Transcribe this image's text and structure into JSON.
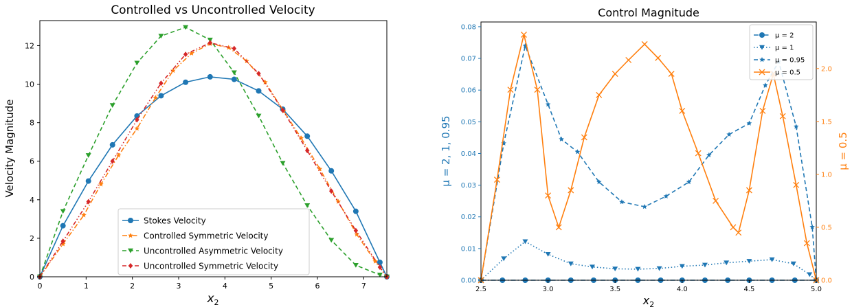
{
  "chart_data": [
    {
      "type": "line",
      "title": "Controlled vs Uncontrolled Velocity",
      "xlabel": "x",
      "xlabel_sub": "2",
      "ylabel": "Velocity Magnitude",
      "xlim": [
        0,
        7.5
      ],
      "ylim": [
        0,
        13.3
      ],
      "xticks": [
        "0",
        "1",
        "2",
        "3",
        "4",
        "5",
        "6",
        "7"
      ],
      "yticks": [
        "0",
        "2",
        "4",
        "6",
        "8",
        "10",
        "12"
      ],
      "legend_position": "lower-center",
      "grid": false,
      "series": [
        {
          "name": "Stokes Velocity",
          "color": "#1f77b4",
          "marker": "circle",
          "dash": "solid",
          "x": [
            0,
            0.5,
            1.05,
            1.57,
            2.1,
            2.62,
            3.15,
            3.68,
            4.2,
            4.73,
            5.25,
            5.78,
            6.3,
            6.83,
            7.35,
            7.5
          ],
          "y": [
            0,
            2.65,
            4.97,
            6.85,
            8.35,
            9.4,
            10.1,
            10.38,
            10.25,
            9.65,
            8.7,
            7.3,
            5.5,
            3.4,
            0.75,
            0
          ]
        },
        {
          "name": "Controlled Symmetric Velocity",
          "color": "#ff7f0e",
          "marker": "star",
          "dash": "dashdot",
          "x": [
            0,
            0.5,
            0.95,
            1.32,
            1.7,
            2.1,
            2.5,
            2.88,
            3.28,
            3.68,
            4.08,
            4.47,
            4.87,
            5.27,
            5.65,
            6.05,
            6.45,
            6.85,
            7.25,
            7.5
          ],
          "y": [
            0,
            1.7,
            3.2,
            4.8,
            6.3,
            7.7,
            9.3,
            10.7,
            11.6,
            12.1,
            11.9,
            11.2,
            10.1,
            8.6,
            7.2,
            5.6,
            3.9,
            2.2,
            0.8,
            0
          ]
        },
        {
          "name": "Uncontrolled Asymmetric Velocity",
          "color": "#2ca02c",
          "marker": "triangle-down",
          "dash": "dashed",
          "x": [
            0,
            0.5,
            1.05,
            1.57,
            2.1,
            2.62,
            3.15,
            3.68,
            4.2,
            4.73,
            5.25,
            5.78,
            6.3,
            6.83,
            7.35,
            7.5
          ],
          "y": [
            0,
            3.4,
            6.3,
            8.9,
            11.1,
            12.5,
            12.95,
            12.3,
            10.6,
            8.35,
            5.9,
            3.7,
            1.9,
            0.6,
            0.1,
            0
          ]
        },
        {
          "name": "Uncontrolled Symmetric Velocity",
          "color": "#d62728",
          "marker": "diamond",
          "dash": "dashdotdot",
          "x": [
            0,
            0.5,
            1.05,
            1.57,
            2.1,
            2.62,
            3.15,
            3.68,
            4.2,
            4.73,
            5.25,
            5.78,
            6.3,
            6.83,
            7.35,
            7.5
          ],
          "y": [
            0,
            1.85,
            3.9,
            6.0,
            8.15,
            10.05,
            11.55,
            12.15,
            11.85,
            10.55,
            8.65,
            6.55,
            4.45,
            2.4,
            0.5,
            0
          ]
        }
      ]
    },
    {
      "type": "line",
      "title": "Control Magnitude",
      "xlabel": "x",
      "xlabel_sub": "2",
      "ylabel_left": "μ = 2, 1, 0.95",
      "ylabel_right": "μ = 0.5",
      "left_axis_color": "#1f77b4",
      "right_axis_color": "#ff7f0e",
      "xlim": [
        2.5,
        5.0
      ],
      "ylim_left": [
        0,
        0.0815
      ],
      "ylim_right": [
        0,
        2.44
      ],
      "xticks": [
        "2.5",
        "3.0",
        "3.5",
        "4.0",
        "4.5",
        "5.0"
      ],
      "yticks_left": [
        "0.00",
        "0.01",
        "0.02",
        "0.03",
        "0.04",
        "0.05",
        "0.06",
        "0.07",
        "0.08"
      ],
      "yticks_right": [
        "0.0",
        "0.5",
        "1.0",
        "1.5",
        "2.0"
      ],
      "legend_position": "top-right",
      "grid": false,
      "series": [
        {
          "name": "μ = 2",
          "axis": "left",
          "color": "#1f77b4",
          "marker": "circle",
          "dash": "dashdot",
          "x": [
            2.5,
            2.66,
            2.83,
            3.0,
            3.17,
            3.34,
            3.5,
            3.67,
            3.84,
            4.0,
            4.17,
            4.34,
            4.5,
            4.67,
            4.84,
            5.0
          ],
          "y": [
            0,
            0,
            0,
            0,
            0,
            0,
            0,
            0,
            0,
            0,
            0,
            0,
            0,
            0,
            0,
            0
          ]
        },
        {
          "name": "μ = 1",
          "axis": "left",
          "color": "#1f77b4",
          "marker": "triangle-down",
          "dash": "dotted",
          "x": [
            2.5,
            2.67,
            2.83,
            3.0,
            3.17,
            3.33,
            3.5,
            3.67,
            3.83,
            4.0,
            4.17,
            4.33,
            4.5,
            4.67,
            4.83,
            4.95,
            5.0
          ],
          "y": [
            0,
            0.0068,
            0.0122,
            0.0082,
            0.0052,
            0.0042,
            0.0036,
            0.0035,
            0.0037,
            0.0044,
            0.0048,
            0.0055,
            0.006,
            0.0065,
            0.0052,
            0.0018,
            0
          ]
        },
        {
          "name": "μ = 0.95",
          "axis": "left",
          "color": "#1f77b4",
          "marker": "star",
          "dash": "dashed",
          "x": [
            2.5,
            2.67,
            2.83,
            3.0,
            3.1,
            3.22,
            3.38,
            3.55,
            3.72,
            3.88,
            4.05,
            4.2,
            4.35,
            4.5,
            4.62,
            4.72,
            4.85,
            4.97,
            5.0
          ],
          "y": [
            0,
            0.0432,
            0.074,
            0.0555,
            0.0445,
            0.0405,
            0.031,
            0.0247,
            0.0232,
            0.0265,
            0.031,
            0.0395,
            0.046,
            0.0495,
            0.0615,
            0.069,
            0.0485,
            0.0168,
            0
          ]
        },
        {
          "name": "μ = 0.5",
          "axis": "right",
          "color": "#ff7f0e",
          "marker": "x",
          "dash": "solid",
          "x": [
            2.5,
            2.62,
            2.72,
            2.82,
            2.92,
            3.0,
            3.08,
            3.17,
            3.27,
            3.38,
            3.5,
            3.6,
            3.72,
            3.82,
            3.92,
            4.0,
            4.12,
            4.25,
            4.38,
            4.42,
            4.5,
            4.6,
            4.68,
            4.75,
            4.85,
            4.93,
            5.0
          ],
          "y": [
            0,
            0.95,
            1.8,
            2.32,
            1.8,
            0.8,
            0.5,
            0.85,
            1.35,
            1.75,
            1.95,
            2.08,
            2.23,
            2.1,
            1.95,
            1.6,
            1.2,
            0.75,
            0.5,
            0.45,
            0.85,
            1.6,
            1.95,
            1.55,
            0.9,
            0.35,
            0
          ]
        }
      ]
    }
  ]
}
